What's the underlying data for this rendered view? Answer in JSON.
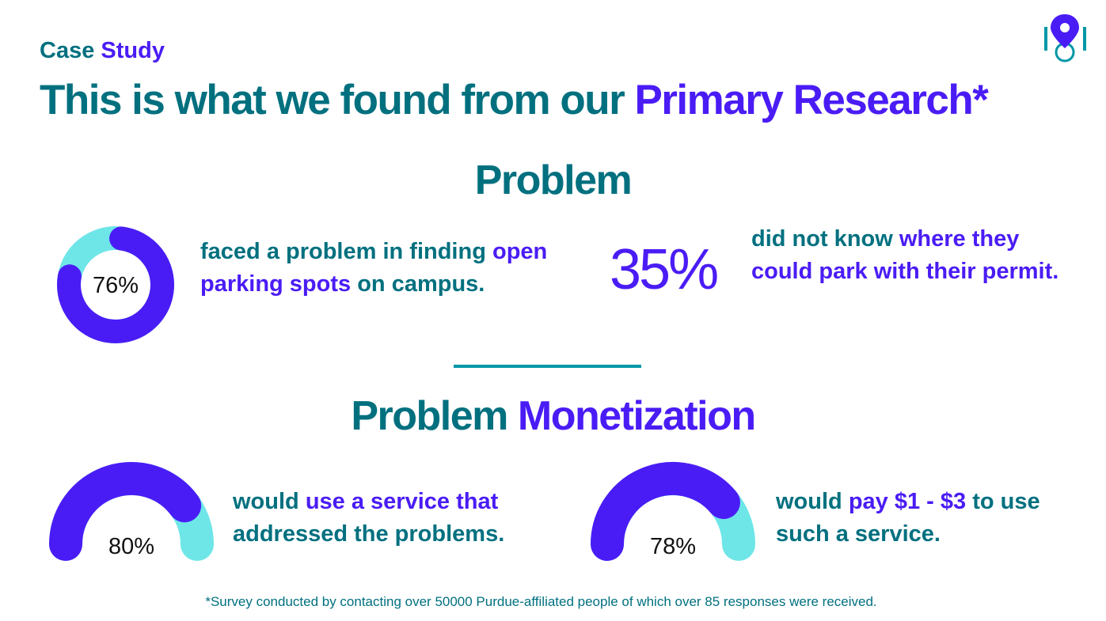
{
  "header": {
    "eyebrow_a": "Case",
    "eyebrow_b": "Study",
    "title_a": "This is what we found from our ",
    "title_b": "Primary Research*"
  },
  "sections": {
    "problem": "Problem",
    "money_a": "Problem",
    "money_b": "Monetization"
  },
  "stats": [
    {
      "parts": [
        [
          "faced a problem in finding ",
          "t"
        ],
        [
          "open parking spots ",
          "p"
        ],
        [
          "on campus.",
          "t"
        ]
      ]
    },
    {
      "big": "35%",
      "parts": [
        [
          "did not know ",
          "t"
        ],
        [
          "where they could park with their permit.",
          "p"
        ]
      ]
    },
    {
      "parts": [
        [
          "would ",
          "t"
        ],
        [
          "use a service that ",
          "p"
        ],
        [
          "addressed the problems.",
          "t"
        ]
      ]
    },
    {
      "parts": [
        [
          "would ",
          "t"
        ],
        [
          "pay $1 - $3 ",
          "p"
        ],
        [
          "to use such a service.",
          "t"
        ]
      ]
    }
  ],
  "footnote": "*Survey conducted by contacting over 50000 Purdue-affiliated people of which over 85 responses were received.",
  "colors": {
    "teal": "#00707f",
    "purple": "#4a1cf5",
    "cyan": "#6ee6e8",
    "divider": "#0097a7"
  },
  "logo_icon": "map-pin-icon",
  "chart_data": [
    {
      "type": "pie",
      "style": "donut",
      "value": 76,
      "label": "76%",
      "max": 100
    },
    {
      "type": "pie",
      "style": "half-gauge",
      "value": 80,
      "label": "80%",
      "max": 100
    },
    {
      "type": "pie",
      "style": "half-gauge",
      "value": 78,
      "label": "78%",
      "max": 100
    }
  ]
}
